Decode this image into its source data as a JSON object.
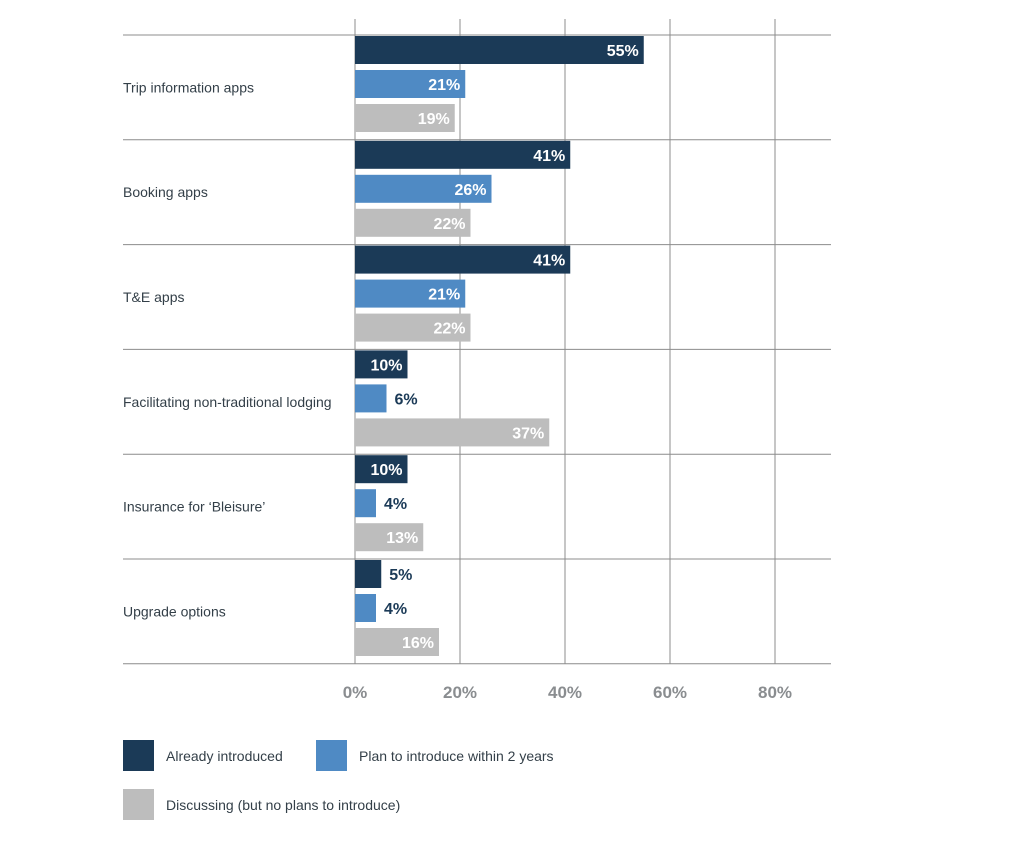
{
  "chart_data": {
    "type": "bar",
    "orientation": "horizontal",
    "categories": [
      "Trip information apps",
      "Booking apps",
      "T&E apps",
      "Facilitating non-traditional lodging",
      "Insurance for ‘Bleisure’",
      "Upgrade options"
    ],
    "series": [
      {
        "name": "Already introduced",
        "color": "#1b3a57",
        "values": [
          55,
          41,
          41,
          10,
          10,
          5
        ],
        "labels": [
          "55%",
          "41%",
          "41%",
          "10%",
          "10%",
          "5%"
        ]
      },
      {
        "name": "Plan to introduce within 2 years",
        "color": "#4f8ac4",
        "values": [
          21,
          26,
          21,
          6,
          4,
          4
        ],
        "labels": [
          "21%",
          "26%",
          "21%",
          "6%",
          "4%",
          "4%"
        ]
      },
      {
        "name": "Discussing (but no plans to introduce)",
        "color": "#bdbdbd",
        "values": [
          19,
          22,
          22,
          37,
          13,
          16
        ],
        "labels": [
          "19%",
          "22%",
          "22%",
          "37%",
          "13%",
          "16%"
        ]
      }
    ],
    "xlim": [
      0,
      90
    ],
    "xticks": [
      0,
      20,
      40,
      60,
      80
    ],
    "xtick_labels": [
      "0%",
      "20%",
      "40%",
      "60%",
      "80%"
    ],
    "grid": true,
    "legend_position": "bottom",
    "title": "",
    "xlabel": "",
    "ylabel": ""
  }
}
